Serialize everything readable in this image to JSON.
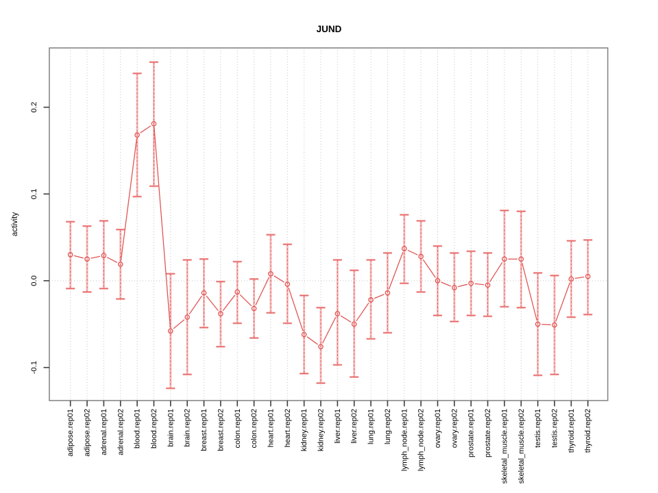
{
  "chart_data": {
    "type": "line",
    "title": "JUND",
    "xlabel": "",
    "ylabel": "activity",
    "legend_position": "none",
    "grid": {
      "vertical_per_category": true,
      "horizontal_at_zero": true,
      "style": "dotted"
    },
    "ylim": [
      -0.138,
      0.268
    ],
    "yticks": [
      0.2,
      0.1,
      0.0,
      -0.1
    ],
    "ytick_labels": [
      "0.2",
      "0.1",
      "0.0",
      "-0.1"
    ],
    "categories": [
      "adipose.rep01",
      "adipose.rep02",
      "adrenal.rep01",
      "adrenal.rep02",
      "blood.rep01",
      "blood.rep02",
      "brain.rep01",
      "brain.rep02",
      "breast.rep01",
      "breast.rep02",
      "colon.rep01",
      "colon.rep02",
      "heart.rep01",
      "heart.rep02",
      "kidney.rep01",
      "kidney.rep02",
      "liver.rep01",
      "liver.rep02",
      "lung.rep01",
      "lung.rep02",
      "lymph_node.rep01",
      "lymph_node.rep02",
      "ovary.rep01",
      "ovary.rep02",
      "prostate.rep01",
      "prostate.rep02",
      "skeletal_muscle.rep01",
      "skeletal_muscle.rep02",
      "testis.rep01",
      "testis.rep02",
      "thyroid.rep01",
      "thyroid.rep02"
    ],
    "series": [
      {
        "name": "activity",
        "marker": "open-circle",
        "values": [
          0.03,
          0.025,
          0.029,
          0.019,
          0.168,
          0.181,
          -0.058,
          -0.042,
          -0.014,
          -0.038,
          -0.013,
          -0.032,
          0.008,
          -0.004,
          -0.062,
          -0.076,
          -0.038,
          -0.05,
          -0.022,
          -0.014,
          0.037,
          0.028,
          0.0,
          -0.008,
          -0.003,
          -0.005,
          0.025,
          0.025,
          -0.05,
          -0.051,
          0.002,
          0.005
        ],
        "err_lo": [
          -0.009,
          -0.013,
          -0.009,
          -0.021,
          0.097,
          0.109,
          -0.124,
          -0.108,
          -0.054,
          -0.076,
          -0.049,
          -0.066,
          -0.037,
          -0.049,
          -0.107,
          -0.118,
          -0.097,
          -0.111,
          -0.067,
          -0.06,
          -0.003,
          -0.013,
          -0.04,
          -0.047,
          -0.04,
          -0.041,
          -0.03,
          -0.031,
          -0.109,
          -0.108,
          -0.042,
          -0.039
        ],
        "err_hi": [
          0.068,
          0.063,
          0.069,
          0.059,
          0.239,
          0.252,
          0.008,
          0.024,
          0.025,
          -0.001,
          0.022,
          0.002,
          0.053,
          0.042,
          -0.017,
          -0.031,
          0.024,
          0.012,
          0.024,
          0.032,
          0.076,
          0.069,
          0.04,
          0.032,
          0.034,
          0.032,
          0.081,
          0.08,
          0.009,
          0.006,
          0.046,
          0.047
        ]
      }
    ],
    "colors": {
      "series": "#e05555",
      "band": "#f28c8c",
      "grid": "#c3c3c3",
      "frame": "#878787",
      "tick": "#3d3d3d",
      "text": "#000000",
      "background": "#ffffff"
    }
  }
}
